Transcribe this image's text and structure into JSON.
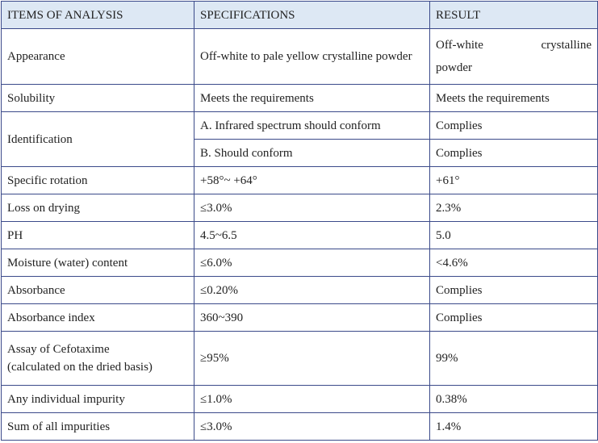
{
  "headers": {
    "item": "ITEMS OF ANALYSIS",
    "spec": "SPECIFICATIONS",
    "result": "RESULT"
  },
  "rows": {
    "appearance": {
      "item": "Appearance",
      "spec": "Off-white to pale yellow crystalline powder",
      "result_line1": "Off-white crystalline",
      "result_line2": "powder"
    },
    "solubility": {
      "item": "Solubility",
      "spec": "Meets the requirements",
      "result": "Meets the requirements"
    },
    "identification": {
      "item": "Identification",
      "spec_a": "A. Infrared spectrum should conform",
      "result_a": "Complies",
      "spec_b": "B. Should conform",
      "result_b": "Complies"
    },
    "specific_rotation": {
      "item": "Specific rotation",
      "spec": "+58°~ +64°",
      "result": "+61°"
    },
    "loss_on_drying": {
      "item": "Loss on drying",
      "spec": "≤3.0%",
      "result": "2.3%"
    },
    "ph": {
      "item": "PH",
      "spec": "4.5~6.5",
      "result": "5.0"
    },
    "moisture": {
      "item": "Moisture (water) content",
      "spec": "≤6.0%",
      "result": "<4.6%"
    },
    "absorbance": {
      "item": "Absorbance",
      "spec": "≤0.20%",
      "result": "Complies"
    },
    "absorbance_index": {
      "item": "Absorbance index",
      "spec": "360~390",
      "result": "Complies"
    },
    "assay": {
      "item_line1": "Assay of Cefotaxime",
      "item_line2": "(calculated on the dried basis)",
      "spec": "≥95%",
      "result": "99%"
    },
    "individual_impurity": {
      "item": "Any individual impurity",
      "spec": "≤1.0%",
      "result": "0.38%"
    },
    "sum_impurities": {
      "item": "Sum of all impurities",
      "spec": "≤3.0%",
      "result": "1.4%"
    }
  }
}
